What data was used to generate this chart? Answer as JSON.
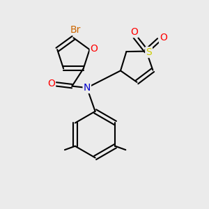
{
  "bg_color": "#ebebeb",
  "bond_color": "#000000",
  "bond_width": 1.5,
  "atom_colors": {
    "Br": "#cc6600",
    "O": "#ff0000",
    "N": "#0000cc",
    "S": "#cccc00"
  },
  "font_size": 9.5
}
